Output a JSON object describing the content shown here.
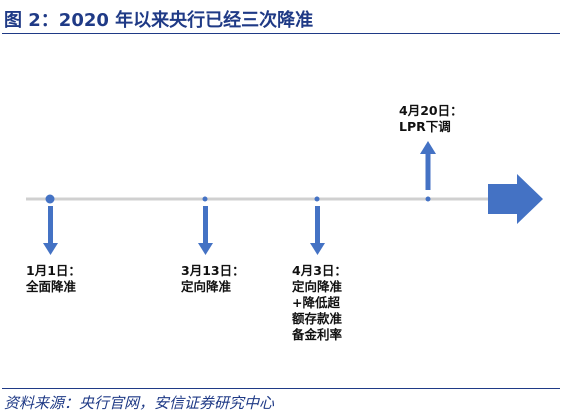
{
  "title": "图 2：2020 年以来央行已经三次降准",
  "source": "资料来源：央行官网，安信证券研究中心",
  "events": [
    {
      "date": "1月1日：",
      "lines": [
        "全面降准"
      ]
    },
    {
      "date": "3月13日：",
      "lines": [
        "定向降准"
      ]
    },
    {
      "date": "4月3日：",
      "lines": [
        "定向降准",
        "+降低超",
        "额存款准",
        "备金利率"
      ]
    },
    {
      "date": "4月20日：",
      "lines": [
        "LPR下调"
      ]
    }
  ],
  "colors": {
    "title": "#1f3a86",
    "arrow": "#4472c4",
    "timeline": "#d0d0d0"
  }
}
